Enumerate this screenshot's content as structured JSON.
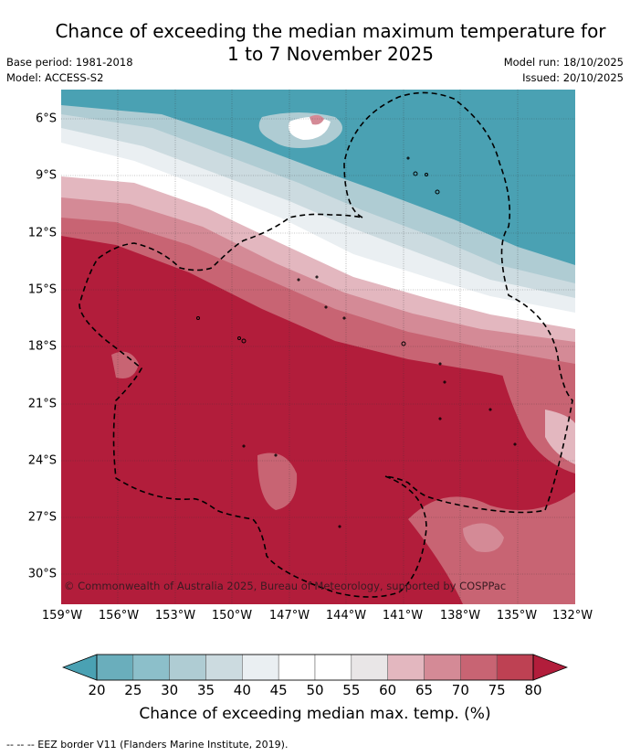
{
  "title_line1": "Chance of exceeding the median maximum temperature for",
  "title_line2": "1 to 7 November 2025",
  "base_period": "Base period: 1981-2018",
  "model": "Model: ACCESS-S2",
  "model_run": "Model run: 18/10/2025",
  "issued": "Issued: 20/10/2025",
  "lat_labels": [
    "6°S",
    "9°S",
    "12°S",
    "15°S",
    "18°S",
    "21°S",
    "24°S",
    "27°S",
    "30°S"
  ],
  "lon_labels": [
    "159°W",
    "156°W",
    "153°W",
    "150°W",
    "147°W",
    "144°W",
    "141°W",
    "138°W",
    "135°W",
    "132°W"
  ],
  "copyright": "© Commonwealth of Australia 2025, Bureau of Meteorology, supported by COSPPac",
  "colorbar": {
    "ticks": [
      "20",
      "25",
      "30",
      "35",
      "40",
      "45",
      "50",
      "55",
      "60",
      "65",
      "70",
      "75",
      "80"
    ],
    "colors": [
      "#4aa1b3",
      "#6aaebc",
      "#8cbfca",
      "#afccd3",
      "#ccdbe0",
      "#eaeff2",
      "#ffffff",
      "#ffffff",
      "#e9e6e7",
      "#e3b7bf",
      "#d48a96",
      "#c86473",
      "#be4153",
      "#b21d3b"
    ],
    "label": "Chance of exceeding median max. temp. (%)"
  },
  "footnote": "-- -- -- EEZ border V11 (Flanders Marine Institute, 2019)."
}
